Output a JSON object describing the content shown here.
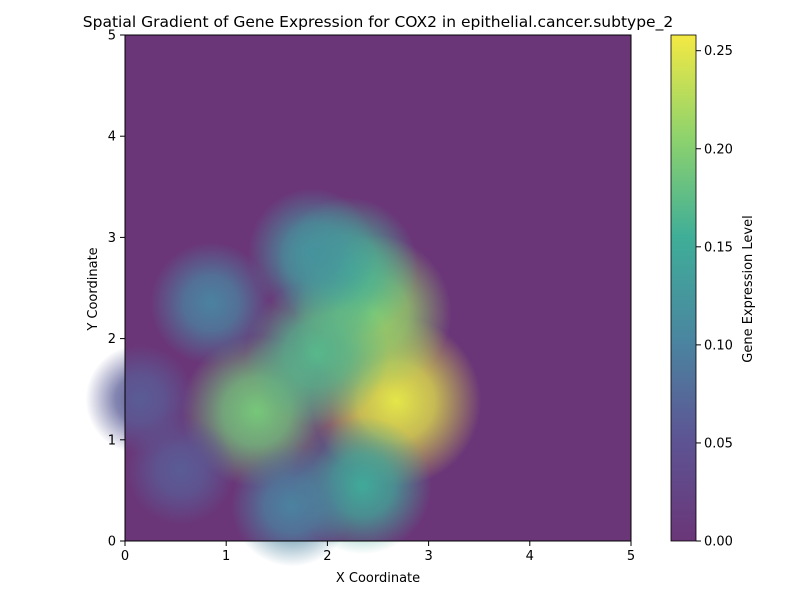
{
  "chart_data": {
    "type": "heatmap",
    "title": "Spatial Gradient of Gene Expression for COX2 in epithelial.cancer.subtype_2",
    "xlabel": "X Coordinate",
    "ylabel": "Y Coordinate",
    "xlim": [
      0,
      5
    ],
    "ylim": [
      0,
      5
    ],
    "x_ticks": [
      "0",
      "1",
      "2",
      "3",
      "4",
      "5"
    ],
    "y_ticks": [
      "0",
      "1",
      "2",
      "3",
      "4",
      "5"
    ],
    "colormap": "viridis",
    "colorbar": {
      "label": "Gene Expression Level",
      "range": [
        0.0,
        0.258
      ],
      "ticks": [
        "0.00",
        "0.05",
        "0.10",
        "0.15",
        "0.20",
        "0.25"
      ],
      "tick_values": [
        0.0,
        0.05,
        0.1,
        0.15,
        0.2,
        0.25
      ]
    },
    "hotspots": [
      {
        "x": 2.68,
        "y": 1.38,
        "value": 0.25
      },
      {
        "x": 2.45,
        "y": 2.25,
        "value": 0.21
      },
      {
        "x": 1.3,
        "y": 1.28,
        "value": 0.19
      },
      {
        "x": 2.2,
        "y": 2.7,
        "value": 0.16
      },
      {
        "x": 1.9,
        "y": 1.85,
        "value": 0.17
      },
      {
        "x": 2.35,
        "y": 0.55,
        "value": 0.15
      },
      {
        "x": 1.65,
        "y": 0.35,
        "value": 0.1
      },
      {
        "x": 0.85,
        "y": 2.35,
        "value": 0.1
      },
      {
        "x": 0.55,
        "y": 0.7,
        "value": 0.06
      },
      {
        "x": 0.15,
        "y": 1.4,
        "value": 0.06
      },
      {
        "x": 1.85,
        "y": 2.85,
        "value": 0.12
      }
    ]
  }
}
